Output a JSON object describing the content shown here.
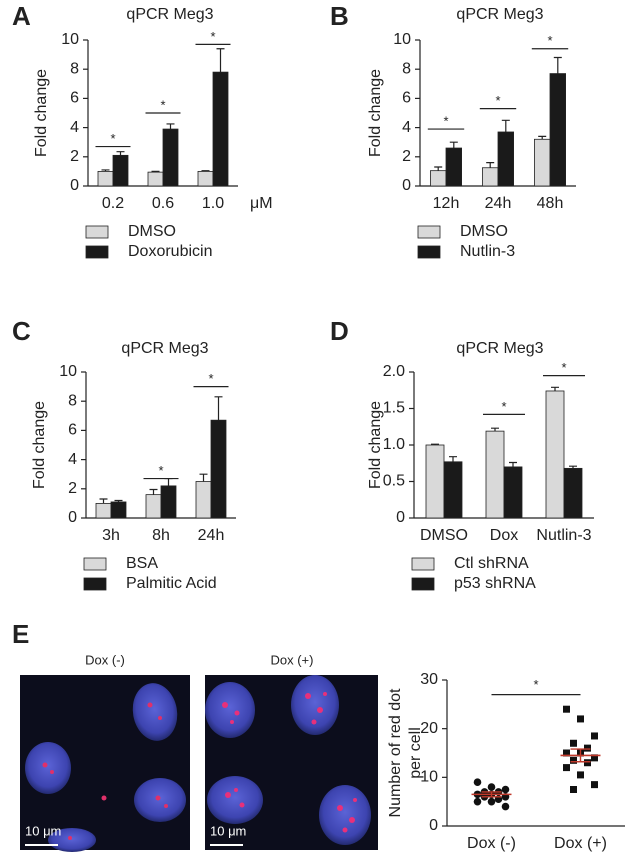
{
  "chart_data": [
    {
      "type": "bar",
      "panel": "A",
      "title": "qPCR Meg3",
      "ylabel": [
        "Fold change"
      ],
      "xunit": "μM",
      "categories": [
        "0.2",
        "0.6",
        "1.0"
      ],
      "series": [
        {
          "name": "DMSO",
          "color": "#d9d9d9",
          "values": [
            1.0,
            0.95,
            1.0
          ],
          "errors": [
            0.1,
            0.05,
            0.05
          ]
        },
        {
          "name": "Doxorubicin",
          "color": "#1a1a1a",
          "values": [
            2.1,
            3.9,
            7.8
          ],
          "errors": [
            0.25,
            0.35,
            1.6
          ]
        }
      ],
      "ylim": [
        0,
        10
      ],
      "yticks": [
        0,
        2,
        4,
        6,
        8,
        10
      ],
      "legend": "bottom",
      "annotations": [
        {
          "text": "*",
          "category": 0,
          "y": 2.7
        },
        {
          "text": "*",
          "category": 1,
          "y": 5.0
        },
        {
          "text": "*",
          "category": 2,
          "y": 9.7
        }
      ]
    },
    {
      "type": "bar",
      "panel": "B",
      "title": "qPCR Meg3",
      "ylabel": [
        "Fold change"
      ],
      "categories": [
        "12h",
        "24h",
        "48h"
      ],
      "series": [
        {
          "name": "DMSO",
          "color": "#d9d9d9",
          "values": [
            1.05,
            1.25,
            3.2
          ],
          "errors": [
            0.25,
            0.35,
            0.2
          ]
        },
        {
          "name": "Nutlin-3",
          "color": "#1a1a1a",
          "values": [
            2.6,
            3.7,
            7.7
          ],
          "errors": [
            0.4,
            0.8,
            1.1
          ]
        }
      ],
      "ylim": [
        0,
        10
      ],
      "yticks": [
        0,
        2,
        4,
        6,
        8,
        10
      ],
      "legend": "bottom",
      "annotations": [
        {
          "text": "*",
          "category": 0,
          "y": 3.9
        },
        {
          "text": "*",
          "category": 1,
          "y": 5.3
        },
        {
          "text": "*",
          "category": 2,
          "y": 9.4
        }
      ]
    },
    {
      "type": "bar",
      "panel": "C",
      "title": "qPCR Meg3",
      "ylabel": [
        "Fold change"
      ],
      "categories": [
        "3h",
        "8h",
        "24h"
      ],
      "series": [
        {
          "name": "BSA",
          "color": "#d9d9d9",
          "values": [
            1.0,
            1.6,
            2.5
          ],
          "errors": [
            0.3,
            0.35,
            0.5
          ]
        },
        {
          "name": "Palmitic Acid",
          "color": "#1a1a1a",
          "values": [
            1.1,
            2.2,
            6.7
          ],
          "errors": [
            0.1,
            0.5,
            1.6
          ]
        }
      ],
      "ylim": [
        0,
        10
      ],
      "yticks": [
        0,
        2,
        4,
        6,
        8,
        10
      ],
      "legend": "bottom",
      "annotations": [
        {
          "text": "*",
          "category": 1,
          "y": 2.7
        },
        {
          "text": "*",
          "category": 2,
          "y": 9.0
        }
      ]
    },
    {
      "type": "bar",
      "panel": "D",
      "title": "qPCR Meg3",
      "ylabel": [
        "Fold change"
      ],
      "categories": [
        "DMSO",
        "Dox",
        "Nutlin-3"
      ],
      "series": [
        {
          "name": "Ctl shRNA",
          "color": "#d9d9d9",
          "values": [
            1.0,
            1.19,
            1.74
          ],
          "errors": [
            0.01,
            0.04,
            0.05
          ]
        },
        {
          "name": "p53 shRNA",
          "color": "#1a1a1a",
          "values": [
            0.77,
            0.7,
            0.68
          ],
          "errors": [
            0.07,
            0.06,
            0.03
          ]
        }
      ],
      "ylim": [
        0,
        2
      ],
      "yticks": [
        0,
        0.5,
        {
          "value": 1,
          "label": "1.0"
        },
        1.5,
        {
          "value": 2,
          "label": "2.0"
        }
      ],
      "legend": "bottom",
      "annotations": [
        {
          "text": "*",
          "category": 1,
          "y": 1.42
        },
        {
          "text": "*",
          "category": 2,
          "y": 1.95
        }
      ]
    },
    {
      "type": "strip",
      "panel": "E",
      "ylabel": [
        "Number of red dot",
        "per cell"
      ],
      "categories": [
        "Dox (-)",
        "Dox (+)"
      ],
      "markers": [
        "circle",
        "square"
      ],
      "color": "#111111",
      "mean_color": "#c0392b",
      "values": [
        [
          9.0,
          8.0,
          7.5,
          7.0,
          7.0,
          6.5,
          6.5,
          6.0,
          6.0,
          5.5,
          5.0,
          5.0,
          4.0
        ],
        [
          24.0,
          22.0,
          18.5,
          17.0,
          16.0,
          15.0,
          15.0,
          14.0,
          13.5,
          13.0,
          12.0,
          10.5,
          8.5,
          7.5
        ]
      ],
      "mean": [
        6.5,
        14.5
      ],
      "sem": [
        0.5,
        1.3
      ],
      "ylim": [
        0,
        30
      ],
      "yticks": [
        0,
        10,
        20,
        30
      ],
      "annotations": [
        {
          "text": "*",
          "categories": [
            0,
            1
          ],
          "y": 27
        }
      ]
    }
  ],
  "images": [
    {
      "label": "Dox (-)",
      "scale_bar": "10 μm"
    },
    {
      "label": "Dox (+)",
      "scale_bar": "10 μm"
    }
  ]
}
